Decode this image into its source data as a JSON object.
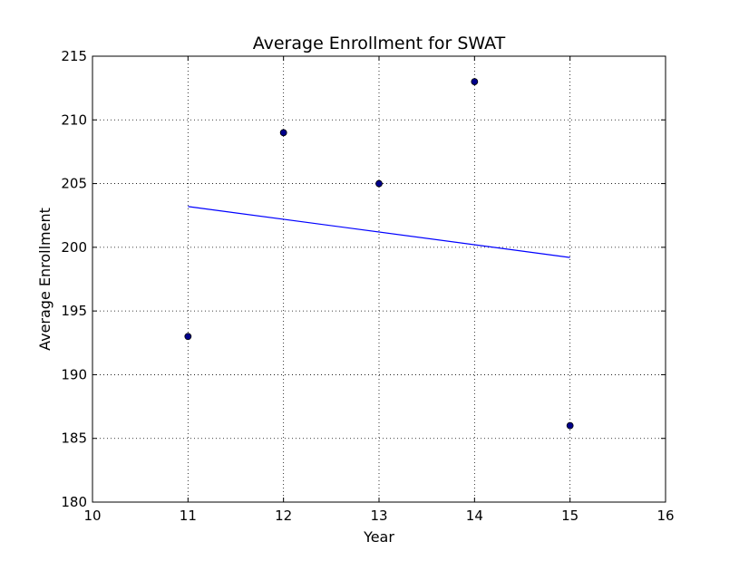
{
  "chart_data": {
    "type": "scatter",
    "title": "Average Enrollment for SWAT",
    "xlabel": "Year",
    "ylabel": "Average Enrollment",
    "xlim": [
      10,
      16
    ],
    "ylim": [
      180,
      215
    ],
    "xticks": [
      10,
      11,
      12,
      13,
      14,
      15,
      16
    ],
    "yticks": [
      180,
      185,
      190,
      195,
      200,
      205,
      210,
      215
    ],
    "grid": true,
    "grid_style": "dotted",
    "series": [
      {
        "type": "scatter",
        "x": [
          11,
          12,
          13,
          14,
          15
        ],
        "y": [
          193,
          209,
          205,
          213,
          186
        ],
        "color": "#00008b"
      },
      {
        "type": "line",
        "x": [
          11,
          15
        ],
        "y": [
          203.2,
          199.2
        ],
        "color": "#0000ff"
      }
    ]
  }
}
